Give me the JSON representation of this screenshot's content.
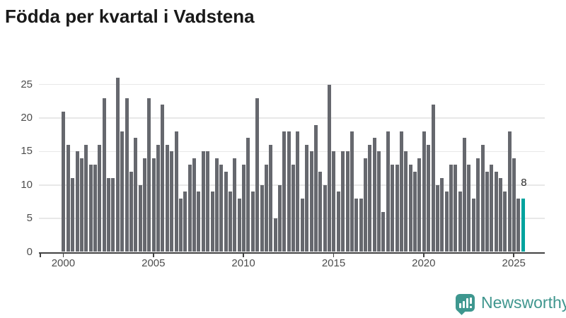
{
  "title": "Födda per kvartal i Vadstena",
  "chart_data": {
    "type": "bar",
    "title": "Födda per kvartal i Vadstena",
    "x_start": "2000-Q1",
    "x_end": "2025-Q3",
    "x_unit": "quarter",
    "values": [
      21,
      16,
      11,
      15,
      14,
      16,
      13,
      13,
      16,
      23,
      11,
      11,
      26,
      18,
      23,
      12,
      17,
      10,
      14,
      23,
      14,
      16,
      22,
      16,
      15,
      18,
      8,
      9,
      13,
      14,
      9,
      15,
      15,
      9,
      14,
      13,
      12,
      9,
      14,
      8,
      13,
      17,
      9,
      23,
      10,
      13,
      16,
      5,
      10,
      18,
      18,
      13,
      18,
      8,
      16,
      15,
      19,
      12,
      10,
      25,
      15,
      9,
      15,
      15,
      18,
      8,
      8,
      14,
      16,
      17,
      15,
      6,
      18,
      13,
      13,
      18,
      15,
      13,
      12,
      14,
      18,
      16,
      22,
      10,
      11,
      9,
      13,
      13,
      9,
      17,
      13,
      8,
      14,
      16,
      12,
      13,
      12,
      11,
      9,
      18,
      14,
      8,
      8
    ],
    "start_year": 2000,
    "highlight": {
      "index": 102,
      "quarter": "2025-Q3",
      "value": 8,
      "label": "8"
    },
    "xticks": [
      "2000",
      "2005",
      "2010",
      "2015",
      "2020",
      "2025"
    ],
    "yticks": [
      "0",
      "5",
      "10",
      "15",
      "20",
      "25"
    ],
    "ylim": [
      0,
      27
    ],
    "grid": "horizontal",
    "legend": "none",
    "colors": {
      "bar": "#66686e",
      "highlight": "#00a39e",
      "axis": "#424242",
      "grid": "#e8e8e8",
      "tick_text": "#4d4d4d",
      "label_text": "#2b2b2b"
    }
  },
  "footer": {
    "brand": "Newsworthy",
    "logo_icon": "chart-bubble-icon"
  }
}
